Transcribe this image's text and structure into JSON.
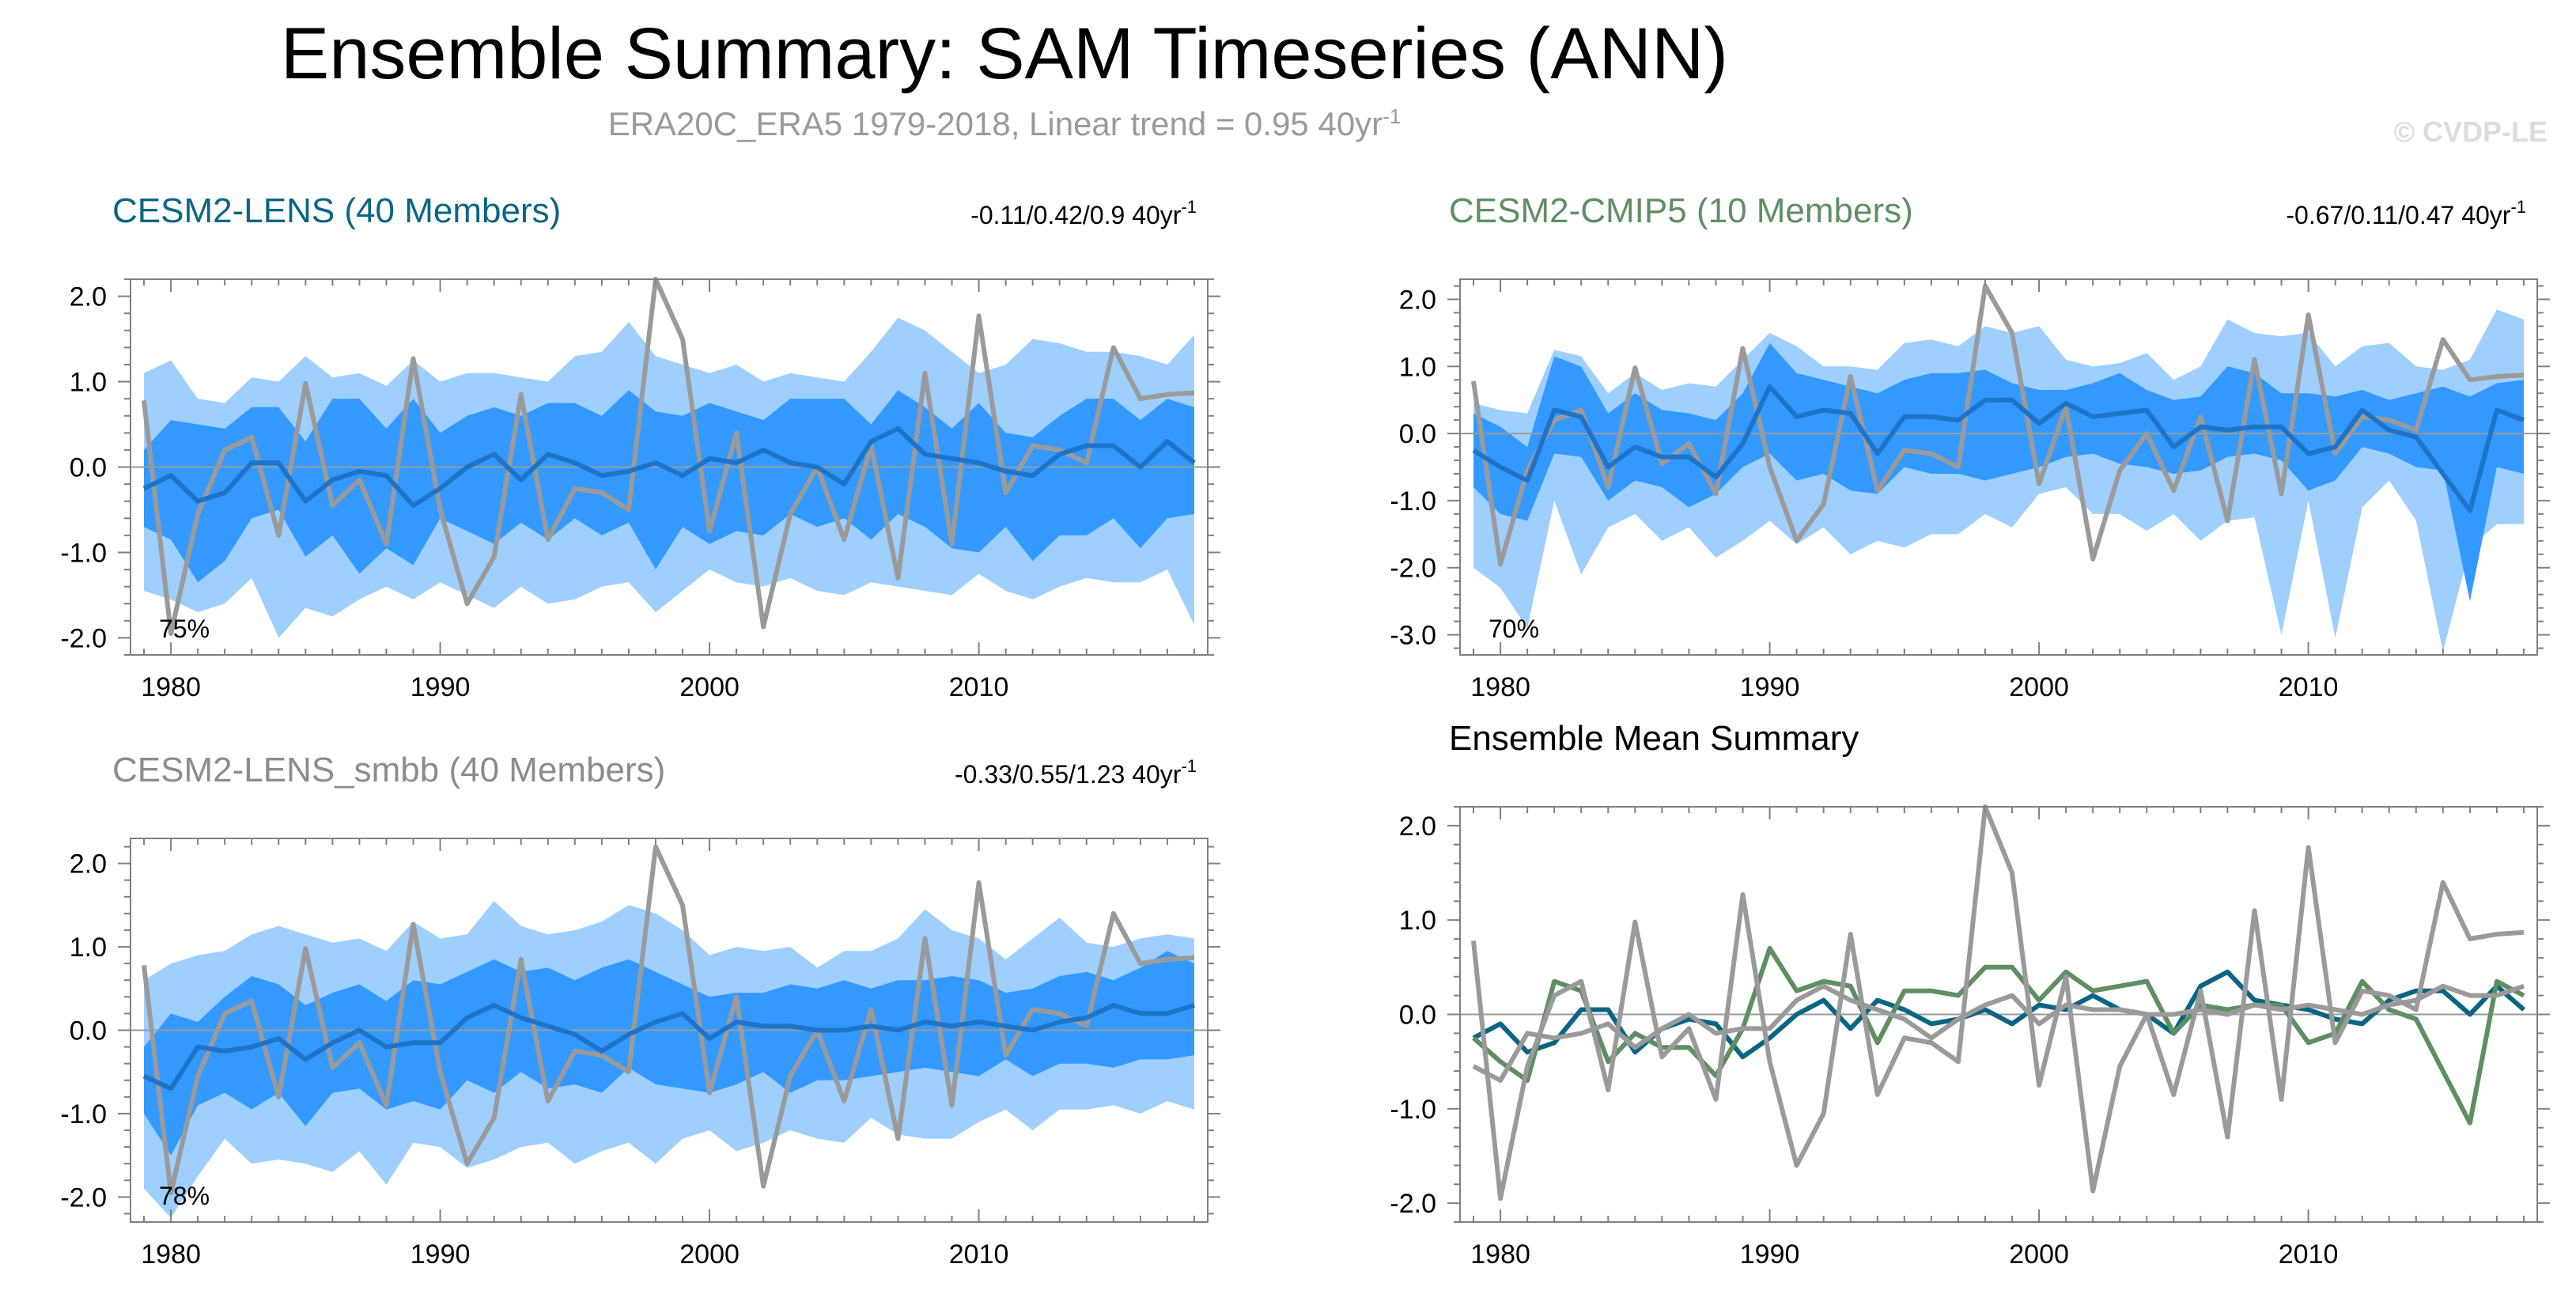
{
  "title": "Ensemble Summary: SAM Timeseries (ANN)",
  "subtitle": {
    "text": "ERA20C_ERA5 1979-2018, Linear trend = 0.95 40yr",
    "superscript": "-1"
  },
  "watermark": "© CVDP-LE",
  "colors": {
    "observations": "#9a9a9a",
    "band_outer": "#9ecfff",
    "band_inner": "#3399ff",
    "mean_cesm2_lens": "#1f74c8",
    "summary_cesm2_lens": "#0a6584",
    "summary_cesm2_cmip5": "#5e8f63",
    "title_cesm2_lens": "#0a6584",
    "title_cesm2_cmip5": "#5e8f63",
    "title_cesm2_lens_smbb": "#8c8c8c",
    "title_summary": "#000000",
    "zero_line": "#9a9a9a",
    "axis": "#808080"
  },
  "chart_data": [
    {
      "id": "cesm2-lens",
      "type": "area",
      "title": "CESM2-LENS (40 Members)",
      "title_color": "#0a6584",
      "trend_stats": "-0.11/0.42/0.9 40yr",
      "trend_stats_superscript": "-1",
      "percent_label": "75%",
      "xlim": [
        1978.5,
        2018.5
      ],
      "ylim": [
        -2.2,
        2.2
      ],
      "x_ticks": [
        1980,
        1990,
        2000,
        2010
      ],
      "y_ticks": [
        -2,
        -1,
        0,
        1,
        2
      ],
      "y_tick_labels": [
        "-2.0",
        "-1.0",
        "0.0",
        "1.0",
        "2.0"
      ],
      "x": [
        1979,
        1980,
        1981,
        1982,
        1983,
        1984,
        1985,
        1986,
        1987,
        1988,
        1989,
        1990,
        1991,
        1992,
        1993,
        1994,
        1995,
        1996,
        1997,
        1998,
        1999,
        2000,
        2001,
        2002,
        2003,
        2004,
        2005,
        2006,
        2007,
        2008,
        2009,
        2010,
        2011,
        2012,
        2013,
        2014,
        2015,
        2016,
        2017,
        2018
      ],
      "band_outer_upper": [
        1.1,
        1.25,
        0.8,
        0.75,
        1.05,
        1.0,
        1.3,
        1.05,
        1.1,
        0.95,
        1.25,
        1.0,
        1.1,
        1.1,
        1.05,
        1.0,
        1.3,
        1.35,
        1.7,
        1.3,
        1.2,
        1.1,
        1.2,
        1.0,
        1.1,
        1.05,
        1.0,
        1.35,
        1.75,
        1.6,
        1.35,
        1.1,
        1.2,
        1.5,
        1.45,
        1.35,
        1.35,
        1.3,
        1.2,
        1.55
      ],
      "band_inner_upper": [
        0.2,
        0.55,
        0.5,
        0.45,
        0.7,
        0.7,
        0.3,
        0.8,
        0.8,
        0.45,
        0.8,
        0.4,
        0.6,
        0.7,
        0.6,
        0.75,
        0.75,
        0.6,
        0.9,
        0.65,
        0.6,
        0.75,
        0.65,
        0.55,
        0.8,
        0.8,
        0.8,
        0.5,
        0.9,
        0.7,
        0.45,
        0.75,
        0.4,
        0.35,
        0.6,
        0.8,
        0.8,
        0.55,
        0.8,
        0.7
      ],
      "band_inner_lower": [
        -0.7,
        -0.85,
        -1.35,
        -1.1,
        -0.6,
        -0.5,
        -1.05,
        -0.8,
        -1.25,
        -0.95,
        -1.15,
        -0.6,
        -0.75,
        -0.9,
        -0.65,
        -0.85,
        -0.6,
        -0.8,
        -0.65,
        -1.2,
        -0.7,
        -0.9,
        -0.75,
        -0.8,
        -0.55,
        -0.7,
        -0.6,
        -0.85,
        -0.55,
        -0.7,
        -0.95,
        -1.0,
        -0.7,
        -1.1,
        -0.8,
        -0.8,
        -0.6,
        -0.95,
        -0.6,
        -0.55
      ],
      "band_outer_lower": [
        -1.45,
        -1.55,
        -1.7,
        -1.6,
        -1.3,
        -2.0,
        -1.65,
        -1.75,
        -1.55,
        -1.4,
        -1.55,
        -1.35,
        -1.5,
        -1.65,
        -1.4,
        -1.6,
        -1.55,
        -1.4,
        -1.35,
        -1.7,
        -1.45,
        -1.2,
        -1.35,
        -1.4,
        -1.3,
        -1.45,
        -1.5,
        -1.35,
        -1.4,
        -1.45,
        -1.5,
        -1.25,
        -1.45,
        -1.55,
        -1.4,
        -1.3,
        -1.35,
        -1.35,
        -1.2,
        -1.85
      ],
      "ensemble_mean": [
        -0.25,
        -0.1,
        -0.4,
        -0.3,
        0.05,
        0.05,
        -0.4,
        -0.15,
        -0.05,
        -0.1,
        -0.45,
        -0.25,
        0.0,
        0.15,
        -0.15,
        0.15,
        0.05,
        -0.1,
        -0.05,
        0.05,
        -0.1,
        0.1,
        0.05,
        0.2,
        0.05,
        0.0,
        -0.2,
        0.3,
        0.45,
        0.15,
        0.1,
        0.05,
        -0.05,
        -0.1,
        0.15,
        0.25,
        0.25,
        0.0,
        0.3,
        0.05
      ],
      "observations": [
        0.78,
        -1.95,
        -0.55,
        0.2,
        0.35,
        -0.8,
        0.98,
        -0.45,
        -0.15,
        -0.9,
        1.27,
        -0.5,
        -1.6,
        -1.05,
        0.85,
        -0.85,
        -0.25,
        -0.3,
        -0.5,
        2.2,
        1.5,
        -0.75,
        0.4,
        -1.87,
        -0.55,
        0.0,
        -0.85,
        0.25,
        -1.3,
        1.1,
        -0.9,
        1.77,
        -0.3,
        0.25,
        0.2,
        0.05,
        1.4,
        0.8,
        0.85,
        0.87
      ]
    },
    {
      "id": "cesm2-cmip5",
      "type": "area",
      "title": "CESM2-CMIP5 (10 Members)",
      "title_color": "#5e8f63",
      "trend_stats": "-0.67/0.11/0.47 40yr",
      "trend_stats_superscript": "-1",
      "percent_label": "70%",
      "xlim": [
        1978.5,
        2018.5
      ],
      "ylim": [
        -3.3,
        2.3
      ],
      "x_ticks": [
        1980,
        1990,
        2000,
        2010
      ],
      "y_ticks": [
        -3,
        -2,
        -1,
        0,
        1,
        2
      ],
      "y_tick_labels": [
        "-3.0",
        "-2.0",
        "-1.0",
        "0.0",
        "1.0",
        "2.0"
      ],
      "x": [
        1979,
        1980,
        1981,
        1982,
        1983,
        1984,
        1985,
        1986,
        1987,
        1988,
        1989,
        1990,
        1991,
        1992,
        1993,
        1994,
        1995,
        1996,
        1997,
        1998,
        1999,
        2000,
        2001,
        2002,
        2003,
        2004,
        2005,
        2006,
        2007,
        2008,
        2009,
        2010,
        2011,
        2012,
        2013,
        2014,
        2015,
        2016,
        2017,
        2018
      ],
      "band_outer_upper": [
        0.45,
        0.35,
        0.3,
        1.25,
        1.15,
        0.6,
        0.9,
        0.65,
        0.75,
        0.7,
        1.1,
        1.5,
        1.3,
        1.0,
        1.0,
        0.95,
        1.35,
        1.4,
        1.3,
        1.6,
        1.5,
        1.6,
        1.1,
        1.0,
        1.05,
        1.2,
        0.8,
        1.0,
        1.7,
        1.5,
        1.45,
        1.5,
        1.0,
        1.3,
        1.35,
        1.0,
        0.95,
        1.1,
        1.85,
        1.7
      ],
      "band_inner_upper": [
        0.3,
        0.1,
        -0.2,
        1.15,
        1.0,
        0.3,
        0.6,
        0.35,
        0.3,
        0.2,
        0.6,
        1.35,
        0.9,
        0.8,
        0.7,
        0.6,
        0.8,
        0.9,
        0.9,
        0.95,
        0.75,
        0.65,
        0.65,
        0.75,
        0.9,
        0.65,
        0.5,
        0.55,
        1.0,
        0.9,
        0.6,
        0.6,
        0.55,
        0.65,
        0.5,
        0.6,
        0.7,
        0.55,
        0.75,
        0.8
      ],
      "band_inner_lower": [
        -0.8,
        -1.2,
        -1.3,
        -0.3,
        -0.35,
        -1.0,
        -0.7,
        -0.8,
        -1.1,
        -0.9,
        -0.5,
        -0.3,
        -0.7,
        -0.6,
        -0.85,
        -0.9,
        -0.5,
        -0.6,
        -0.6,
        -0.7,
        -0.6,
        -0.5,
        -0.35,
        -0.3,
        -0.45,
        -0.5,
        -0.6,
        -0.55,
        -0.35,
        -0.3,
        -0.4,
        -0.85,
        -0.7,
        -0.2,
        -0.3,
        -0.5,
        -0.55,
        -2.5,
        -0.5,
        -0.6
      ],
      "band_outer_lower": [
        -2.0,
        -2.3,
        -2.9,
        -1.0,
        -2.1,
        -1.4,
        -1.2,
        -1.6,
        -1.4,
        -1.85,
        -1.6,
        -1.3,
        -1.65,
        -1.4,
        -1.8,
        -1.6,
        -1.7,
        -1.5,
        -1.5,
        -1.2,
        -1.4,
        -0.9,
        -0.8,
        -1.2,
        -1.2,
        -1.45,
        -1.2,
        -1.6,
        -1.3,
        -1.25,
        -3.0,
        -1.0,
        -3.05,
        -1.1,
        -0.7,
        -1.3,
        -3.25,
        -1.7,
        -1.35,
        -1.35
      ],
      "ensemble_mean": [
        -0.25,
        -0.5,
        -0.7,
        0.35,
        0.25,
        -0.5,
        -0.2,
        -0.35,
        -0.35,
        -0.65,
        -0.15,
        0.7,
        0.25,
        0.35,
        0.3,
        -0.3,
        0.25,
        0.25,
        0.2,
        0.5,
        0.5,
        0.15,
        0.45,
        0.25,
        0.3,
        0.35,
        -0.2,
        0.1,
        0.05,
        0.1,
        0.1,
        -0.3,
        -0.2,
        0.35,
        0.05,
        -0.05,
        -0.6,
        -1.15,
        0.35,
        0.2
      ],
      "observations": [
        0.78,
        -1.95,
        -0.55,
        0.2,
        0.35,
        -0.8,
        0.98,
        -0.45,
        -0.15,
        -0.9,
        1.27,
        -0.5,
        -1.6,
        -1.05,
        0.85,
        -0.85,
        -0.25,
        -0.3,
        -0.5,
        2.2,
        1.5,
        -0.75,
        0.4,
        -1.87,
        -0.55,
        0.0,
        -0.85,
        0.25,
        -1.3,
        1.1,
        -0.9,
        1.77,
        -0.3,
        0.25,
        0.2,
        0.05,
        1.4,
        0.8,
        0.85,
        0.87
      ]
    },
    {
      "id": "cesm2-lens-smbb",
      "type": "area",
      "title": "CESM2-LENS_smbb (40 Members)",
      "title_color": "#8c8c8c",
      "trend_stats": "-0.33/0.55/1.23 40yr",
      "trend_stats_superscript": "-1",
      "percent_label": "78%",
      "xlim": [
        1978.5,
        2018.5
      ],
      "ylim": [
        -2.3,
        2.3
      ],
      "x_ticks": [
        1980,
        1990,
        2000,
        2010
      ],
      "y_ticks": [
        -2,
        -1,
        0,
        1,
        2
      ],
      "y_tick_labels": [
        "-2.0",
        "-1.0",
        "0.0",
        "1.0",
        "2.0"
      ],
      "x": [
        1979,
        1980,
        1981,
        1982,
        1983,
        1984,
        1985,
        1986,
        1987,
        1988,
        1989,
        1990,
        1991,
        1992,
        1993,
        1994,
        1995,
        1996,
        1997,
        1998,
        1999,
        2000,
        2001,
        2002,
        2003,
        2004,
        2005,
        2006,
        2007,
        2008,
        2009,
        2010,
        2011,
        2012,
        2013,
        2014,
        2015,
        2016,
        2017,
        2018
      ],
      "band_outer_upper": [
        0.6,
        0.8,
        0.9,
        0.95,
        1.15,
        1.25,
        1.15,
        1.05,
        1.1,
        0.95,
        1.3,
        1.1,
        1.15,
        1.55,
        1.25,
        1.15,
        1.2,
        1.3,
        1.5,
        1.4,
        1.2,
        0.9,
        1.0,
        0.95,
        1.0,
        0.75,
        0.95,
        0.95,
        1.1,
        1.45,
        1.2,
        1.1,
        0.85,
        1.1,
        1.35,
        1.05,
        1.0,
        1.1,
        1.15,
        1.1
      ],
      "band_inner_upper": [
        -0.2,
        0.2,
        0.1,
        0.4,
        0.65,
        0.55,
        0.3,
        0.45,
        0.55,
        0.35,
        0.6,
        0.55,
        0.7,
        0.85,
        0.7,
        0.75,
        0.6,
        0.75,
        0.85,
        0.7,
        0.55,
        0.4,
        0.45,
        0.45,
        0.55,
        0.5,
        0.6,
        0.5,
        0.6,
        0.6,
        0.65,
        0.6,
        0.45,
        0.5,
        0.65,
        0.7,
        0.6,
        0.75,
        0.95,
        0.8
      ],
      "band_inner_lower": [
        -1.0,
        -1.5,
        -0.9,
        -0.75,
        -0.95,
        -0.75,
        -1.15,
        -0.75,
        -0.7,
        -0.95,
        -0.85,
        -0.95,
        -0.6,
        -0.75,
        -0.5,
        -0.7,
        -0.65,
        -0.75,
        -0.45,
        -0.65,
        -0.7,
        -0.75,
        -0.65,
        -0.5,
        -0.75,
        -0.6,
        -0.6,
        -0.55,
        -0.5,
        -0.45,
        -0.5,
        -0.55,
        -0.35,
        -0.55,
        -0.4,
        -0.4,
        -0.45,
        -0.35,
        -0.35,
        -0.3
      ],
      "band_outer_lower": [
        -1.9,
        -2.25,
        -1.75,
        -1.3,
        -1.6,
        -1.55,
        -1.6,
        -1.7,
        -1.45,
        -1.85,
        -1.35,
        -1.4,
        -1.65,
        -1.55,
        -1.4,
        -1.35,
        -1.6,
        -1.45,
        -1.35,
        -1.6,
        -1.3,
        -1.2,
        -1.45,
        -1.35,
        -1.2,
        -1.3,
        -1.35,
        -1.05,
        -1.25,
        -1.3,
        -1.3,
        -1.1,
        -0.95,
        -1.2,
        -0.95,
        -0.95,
        -0.9,
        -1.0,
        -0.85,
        -0.95
      ],
      "ensemble_mean": [
        -0.55,
        -0.7,
        -0.2,
        -0.25,
        -0.2,
        -0.1,
        -0.35,
        -0.15,
        0.0,
        -0.2,
        -0.15,
        -0.15,
        0.15,
        0.3,
        0.15,
        0.05,
        -0.05,
        -0.25,
        -0.05,
        0.1,
        0.2,
        -0.1,
        0.1,
        0.05,
        0.05,
        0.0,
        0.0,
        0.05,
        0.0,
        0.1,
        0.05,
        0.1,
        0.05,
        0.0,
        0.1,
        0.15,
        0.3,
        0.2,
        0.2,
        0.3
      ],
      "observations": [
        0.78,
        -1.95,
        -0.55,
        0.2,
        0.35,
        -0.8,
        0.98,
        -0.45,
        -0.15,
        -0.9,
        1.27,
        -0.5,
        -1.6,
        -1.05,
        0.85,
        -0.85,
        -0.25,
        -0.3,
        -0.5,
        2.2,
        1.5,
        -0.75,
        0.4,
        -1.87,
        -0.55,
        0.0,
        -0.85,
        0.25,
        -1.3,
        1.1,
        -0.9,
        1.77,
        -0.3,
        0.25,
        0.2,
        0.05,
        1.4,
        0.8,
        0.85,
        0.87
      ]
    },
    {
      "id": "ensemble-mean-summary",
      "type": "line",
      "title": "Ensemble Mean Summary",
      "title_color": "#000000",
      "xlim": [
        1978.5,
        2018.5
      ],
      "ylim": [
        -2.2,
        2.2
      ],
      "x_ticks": [
        1980,
        1990,
        2000,
        2010
      ],
      "y_ticks": [
        -2,
        -1,
        0,
        1,
        2
      ],
      "y_tick_labels": [
        "-2.0",
        "-1.0",
        "0.0",
        "1.0",
        "2.0"
      ],
      "x": [
        1979,
        1980,
        1981,
        1982,
        1983,
        1984,
        1985,
        1986,
        1987,
        1988,
        1989,
        1990,
        1991,
        1992,
        1993,
        1994,
        1995,
        1996,
        1997,
        1998,
        1999,
        2000,
        2001,
        2002,
        2003,
        2004,
        2005,
        2006,
        2007,
        2008,
        2009,
        2010,
        2011,
        2012,
        2013,
        2014,
        2015,
        2016,
        2017,
        2018
      ],
      "series": [
        {
          "color": "#0a6584",
          "values": [
            -0.25,
            -0.1,
            -0.4,
            -0.3,
            0.05,
            0.05,
            -0.4,
            -0.15,
            -0.05,
            -0.1,
            -0.45,
            -0.25,
            0.0,
            0.15,
            -0.15,
            0.15,
            0.05,
            -0.1,
            -0.05,
            0.05,
            -0.1,
            0.1,
            0.05,
            0.2,
            0.05,
            0.0,
            -0.2,
            0.3,
            0.45,
            0.15,
            0.1,
            0.05,
            -0.05,
            -0.1,
            0.15,
            0.25,
            0.25,
            0.0,
            0.3,
            0.05
          ]
        },
        {
          "color": "#5e8f63",
          "values": [
            -0.25,
            -0.5,
            -0.7,
            0.35,
            0.25,
            -0.5,
            -0.2,
            -0.35,
            -0.35,
            -0.65,
            -0.15,
            0.7,
            0.25,
            0.35,
            0.3,
            -0.3,
            0.25,
            0.25,
            0.2,
            0.5,
            0.5,
            0.15,
            0.45,
            0.25,
            0.3,
            0.35,
            -0.2,
            0.1,
            0.05,
            0.1,
            0.1,
            -0.3,
            -0.2,
            0.35,
            0.05,
            -0.05,
            -0.6,
            -1.15,
            0.35,
            0.2
          ]
        },
        {
          "color": "#9a9a9a",
          "values": [
            -0.55,
            -0.7,
            -0.2,
            -0.25,
            -0.2,
            -0.1,
            -0.35,
            -0.15,
            0.0,
            -0.2,
            -0.15,
            -0.15,
            0.15,
            0.3,
            0.15,
            0.05,
            -0.05,
            -0.25,
            -0.05,
            0.1,
            0.2,
            -0.1,
            0.1,
            0.05,
            0.05,
            0.0,
            0.0,
            0.05,
            0.0,
            0.1,
            0.05,
            0.1,
            0.05,
            0.0,
            0.1,
            0.15,
            0.3,
            0.2,
            0.2,
            0.3
          ]
        },
        {
          "color": "#9a9a9a",
          "values": [
            0.78,
            -1.95,
            -0.55,
            0.2,
            0.35,
            -0.8,
            0.98,
            -0.45,
            -0.15,
            -0.9,
            1.27,
            -0.5,
            -1.6,
            -1.05,
            0.85,
            -0.85,
            -0.25,
            -0.3,
            -0.5,
            2.2,
            1.5,
            -0.75,
            0.4,
            -1.87,
            -0.55,
            0.0,
            -0.85,
            0.25,
            -1.3,
            1.1,
            -0.9,
            1.77,
            -0.3,
            0.25,
            0.2,
            0.05,
            1.4,
            0.8,
            0.85,
            0.87
          ]
        }
      ]
    }
  ]
}
